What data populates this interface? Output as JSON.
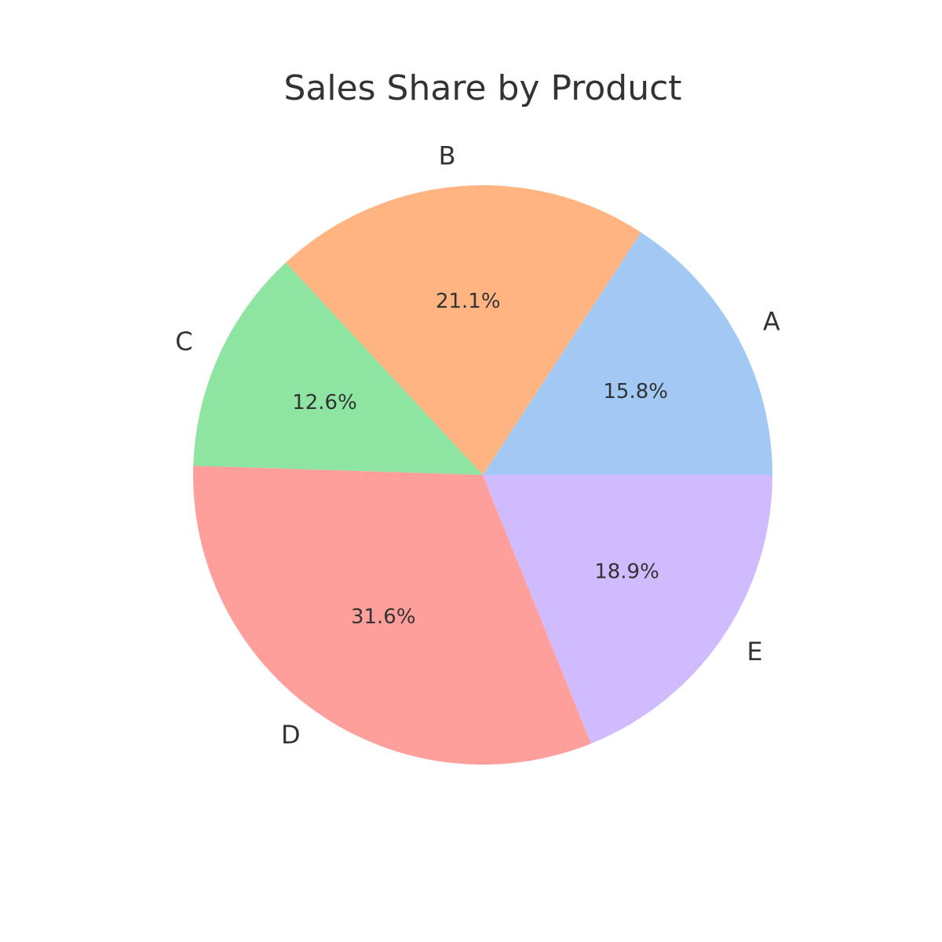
{
  "chart_data": {
    "type": "pie",
    "title": "Sales Share by Product",
    "categories": [
      "A",
      "B",
      "C",
      "D",
      "E"
    ],
    "values": [
      15.8,
      21.1,
      12.6,
      31.6,
      18.9
    ],
    "value_labels": [
      "15.8%",
      "21.1%",
      "12.6%",
      "31.6%",
      "18.9%"
    ],
    "colors": [
      "#a1c9f4",
      "#ffb482",
      "#8de5a1",
      "#ff9f9b",
      "#d0bbff"
    ],
    "start_angle_deg": 0,
    "direction": "counterclockwise",
    "legend": "none"
  }
}
